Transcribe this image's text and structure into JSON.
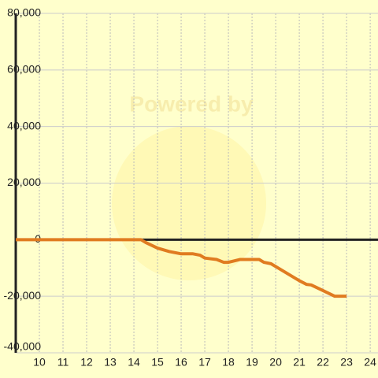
{
  "chart_data": {
    "type": "line",
    "watermark": "Powered by",
    "x": [
      9,
      14,
      14.3,
      14.5,
      15,
      15.5,
      16,
      16.5,
      16.8,
      17,
      17.5,
      17.8,
      18,
      18.5,
      19,
      19.3,
      19.5,
      19.8,
      20,
      20.5,
      21,
      21.3,
      21.5,
      22,
      22.5,
      23
    ],
    "series": [
      {
        "color": "#e07b20",
        "values": [
          0,
          0,
          0,
          -1000,
          -3000,
          -4200,
          -5000,
          -5000,
          -5500,
          -6500,
          -7000,
          -8000,
          -8000,
          -7000,
          -7000,
          -7000,
          -8000,
          -8500,
          -9500,
          -12000,
          -14500,
          -15800,
          -16000,
          -18000,
          -20000,
          -20000
        ]
      }
    ],
    "xlim": [
      9,
      24.33
    ],
    "xticks": [
      10,
      11,
      12,
      13,
      14,
      15,
      16,
      17,
      18,
      19,
      20,
      21,
      22,
      23,
      24
    ],
    "ylim": [
      -40000,
      80000
    ],
    "yticks": [
      {
        "value": -40000,
        "label": "-40,000"
      },
      {
        "value": -20000,
        "label": "-20,000"
      },
      0,
      {
        "value": 20000,
        "label": "20,000"
      },
      {
        "value": 40000,
        "label": "40,000"
      },
      {
        "value": 60000,
        "label": "60,000"
      },
      {
        "value": 80000,
        "label": "80,000"
      }
    ],
    "grid": true
  }
}
